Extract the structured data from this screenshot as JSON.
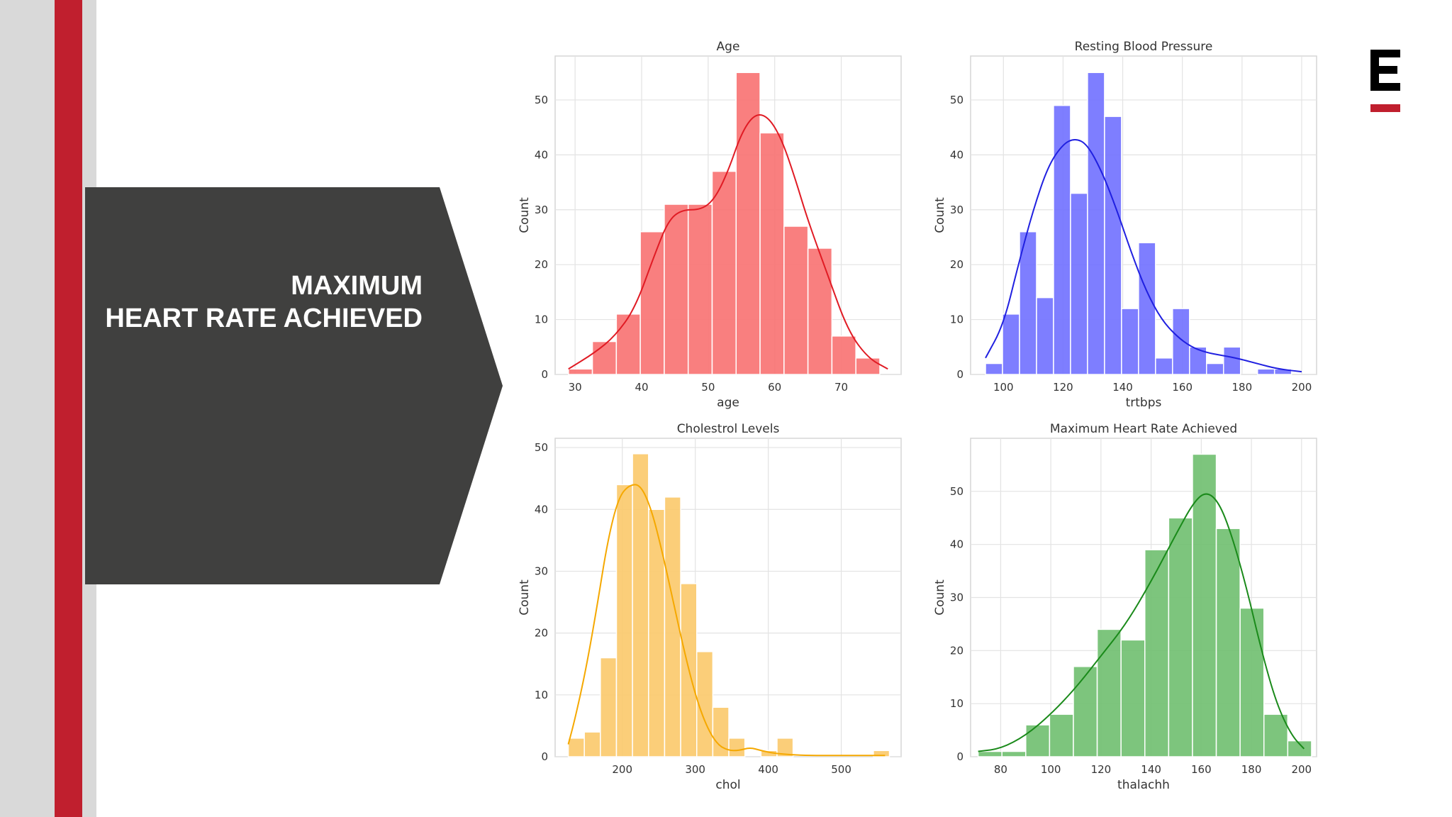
{
  "slide": {
    "title_line1": "MAXIMUM",
    "title_line2": "HEART RATE ACHIEVED"
  },
  "colors": {
    "accent_red": "#c01f2e",
    "dark_panel": "#40403f",
    "side_gray": "#d9d9d9"
  },
  "logo": {
    "icon": "letter-e-logo"
  },
  "chart_data": [
    {
      "id": "age",
      "type": "bar",
      "title": "Age",
      "xlabel": "age",
      "ylabel": "Count",
      "color": "#f87171",
      "line_color": "#e01b24",
      "xlim": [
        27,
        79
      ],
      "ylim": [
        0,
        58
      ],
      "xticks": [
        30,
        40,
        50,
        60,
        70
      ],
      "yticks": [
        0,
        10,
        20,
        30,
        40,
        50
      ],
      "bin_start": 29,
      "bin_width": 3.6,
      "values": [
        1,
        6,
        11,
        26,
        31,
        31,
        37,
        55,
        44,
        27,
        23,
        7,
        3
      ],
      "kde": [
        [
          29,
          1
        ],
        [
          33,
          4
        ],
        [
          36,
          7
        ],
        [
          39,
          12
        ],
        [
          42,
          22
        ],
        [
          44,
          28
        ],
        [
          46,
          30
        ],
        [
          49,
          30
        ],
        [
          51,
          32
        ],
        [
          53,
          37
        ],
        [
          55,
          44
        ],
        [
          57,
          47.5
        ],
        [
          59,
          47
        ],
        [
          61,
          43
        ],
        [
          63,
          36
        ],
        [
          65,
          28
        ],
        [
          68,
          18
        ],
        [
          71,
          8
        ],
        [
          74,
          3
        ],
        [
          77,
          1
        ]
      ]
    },
    {
      "id": "trtbps",
      "type": "bar",
      "title": "Resting Blood Pressure",
      "xlabel": "trtbps",
      "ylabel": "Count",
      "color": "#7070ff",
      "line_color": "#2020e0",
      "xlim": [
        89,
        205
      ],
      "ylim": [
        0,
        58
      ],
      "xticks": [
        100,
        120,
        140,
        160,
        180,
        200
      ],
      "yticks": [
        0,
        10,
        20,
        30,
        40,
        50
      ],
      "bin_start": 94,
      "bin_width": 5.7,
      "values": [
        2,
        11,
        26,
        14,
        49,
        33,
        55,
        47,
        12,
        24,
        3,
        12,
        5,
        2,
        5,
        0,
        1,
        1
      ],
      "kde": [
        [
          94,
          3
        ],
        [
          100,
          9
        ],
        [
          105,
          20
        ],
        [
          110,
          30
        ],
        [
          115,
          38
        ],
        [
          120,
          42
        ],
        [
          124,
          43
        ],
        [
          128,
          42
        ],
        [
          133,
          37
        ],
        [
          138,
          30
        ],
        [
          143,
          22
        ],
        [
          148,
          15
        ],
        [
          153,
          10
        ],
        [
          158,
          7
        ],
        [
          163,
          5
        ],
        [
          168,
          4
        ],
        [
          173,
          3.5
        ],
        [
          178,
          3
        ],
        [
          185,
          2
        ],
        [
          192,
          1
        ],
        [
          200,
          0.5
        ]
      ]
    },
    {
      "id": "chol",
      "type": "bar",
      "title": "Cholestrol Levels",
      "xlabel": "chol",
      "ylabel": "Count",
      "color": "#fbc96a",
      "line_color": "#f5a800",
      "xlim": [
        108,
        582
      ],
      "ylim": [
        0,
        51.5
      ],
      "xticks": [
        200,
        300,
        400,
        500
      ],
      "yticks": [
        0,
        10,
        20,
        30,
        40,
        50
      ],
      "bin_start": 126,
      "bin_width": 22,
      "values": [
        3,
        4,
        16,
        44,
        49,
        40,
        42,
        28,
        17,
        8,
        3,
        0,
        1,
        3,
        0,
        0,
        0,
        0,
        0,
        1
      ],
      "kde": [
        [
          126,
          2
        ],
        [
          135,
          6
        ],
        [
          150,
          14
        ],
        [
          165,
          24
        ],
        [
          180,
          35
        ],
        [
          195,
          42
        ],
        [
          210,
          44
        ],
        [
          225,
          44
        ],
        [
          240,
          40
        ],
        [
          255,
          33
        ],
        [
          270,
          25
        ],
        [
          285,
          17
        ],
        [
          300,
          10
        ],
        [
          315,
          5
        ],
        [
          330,
          2
        ],
        [
          345,
          1
        ],
        [
          360,
          1
        ],
        [
          375,
          1.5
        ],
        [
          390,
          1
        ],
        [
          410,
          0.5
        ],
        [
          450,
          0.2
        ],
        [
          500,
          0.2
        ],
        [
          560,
          0.2
        ]
      ]
    },
    {
      "id": "thalachh",
      "type": "bar",
      "title": "Maximum Heart Rate Achieved",
      "xlabel": "thalachh",
      "ylabel": "Count",
      "color": "#6fbf6f",
      "line_color": "#1a8a1a",
      "xlim": [
        68,
        206
      ],
      "ylim": [
        0,
        60
      ],
      "xticks": [
        80,
        100,
        120,
        140,
        160,
        180,
        200
      ],
      "yticks": [
        0,
        10,
        20,
        30,
        40,
        50
      ],
      "bin_start": 71,
      "bin_width": 9.5,
      "values": [
        1,
        1,
        6,
        8,
        17,
        24,
        22,
        39,
        45,
        57,
        43,
        28,
        8,
        3
      ],
      "kde": [
        [
          71,
          1
        ],
        [
          80,
          1.5
        ],
        [
          90,
          4
        ],
        [
          100,
          8
        ],
        [
          110,
          13
        ],
        [
          120,
          19
        ],
        [
          130,
          25
        ],
        [
          140,
          33
        ],
        [
          150,
          42
        ],
        [
          157,
          48
        ],
        [
          162,
          50
        ],
        [
          167,
          48
        ],
        [
          172,
          42
        ],
        [
          178,
          32
        ],
        [
          184,
          20
        ],
        [
          190,
          10
        ],
        [
          196,
          4
        ],
        [
          201,
          1.5
        ]
      ]
    }
  ]
}
